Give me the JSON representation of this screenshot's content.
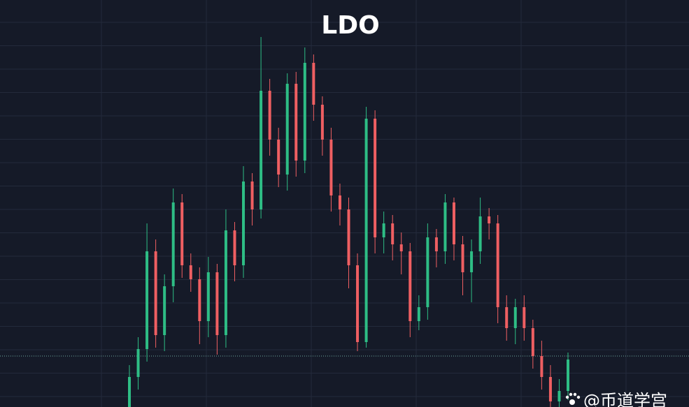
{
  "chart_data": {
    "type": "candlestick",
    "title": "LDO",
    "watermark": "@币道学宫",
    "open": [
      0,
      43,
      83,
      223,
      103,
      173,
      293,
      203,
      183,
      123,
      193,
      103,
      253,
      203,
      323,
      283,
      453,
      383,
      333,
      463,
      353,
      493,
      433,
      383,
      303,
      283,
      203,
      93,
      413,
      243,
      263,
      233,
      223,
      123,
      143,
      243,
      223,
      293,
      233,
      193,
      223,
      273,
      263,
      143,
      113,
      143,
      113,
      73,
      43,
      8,
      23
    ],
    "high": [
      60,
      100,
      263,
      240,
      190,
      313,
      305,
      220,
      200,
      215,
      205,
      283,
      265,
      345,
      335,
      530,
      470,
      400,
      478,
      480,
      515,
      505,
      445,
      400,
      320,
      300,
      220,
      430,
      425,
      280,
      275,
      250,
      235,
      160,
      263,
      255,
      305,
      300,
      245,
      240,
      300,
      285,
      275,
      160,
      155,
      160,
      125,
      95,
      60,
      40,
      78
    ],
    "low": [
      0,
      25,
      65,
      85,
      80,
      150,
      185,
      165,
      90,
      100,
      75,
      85,
      180,
      185,
      260,
      270,
      360,
      315,
      310,
      330,
      335,
      410,
      360,
      280,
      260,
      170,
      80,
      85,
      220,
      220,
      210,
      190,
      100,
      110,
      125,
      200,
      205,
      210,
      160,
      150,
      205,
      240,
      120,
      95,
      90,
      95,
      55,
      25,
      0,
      0,
      10
    ],
    "close": [
      43,
      83,
      223,
      103,
      173,
      293,
      203,
      183,
      123,
      193,
      103,
      253,
      203,
      323,
      283,
      453,
      383,
      333,
      463,
      353,
      493,
      433,
      383,
      303,
      283,
      203,
      93,
      413,
      243,
      263,
      233,
      223,
      123,
      143,
      243,
      223,
      293,
      233,
      193,
      223,
      273,
      263,
      143,
      113,
      143,
      113,
      73,
      43,
      8,
      23,
      68
    ],
    "up_color": "#2ebd85",
    "down_color": "#ef5f62",
    "ylim": [
      0,
      583
    ],
    "price_line": 73
  }
}
